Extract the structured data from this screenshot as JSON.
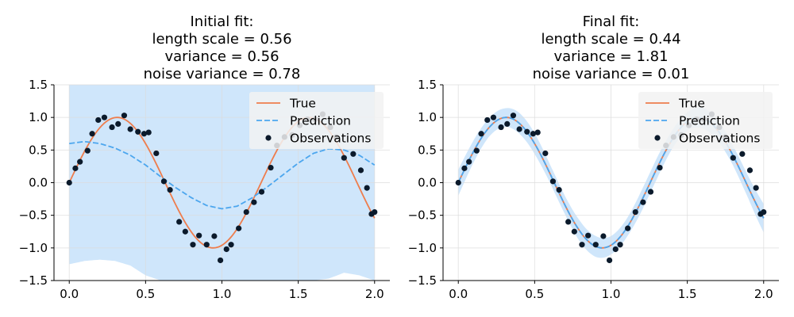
{
  "chart_data": [
    {
      "type": "line",
      "title": [
        "Initial fit:",
        "length scale = 0.56",
        "variance = 0.56",
        "noise variance = 0.78"
      ],
      "xlabel": "",
      "ylabel": "",
      "xlim": [
        -0.1,
        2.1
      ],
      "ylim": [
        -1.5,
        1.5
      ],
      "xticks": [
        "0.0",
        "0.5",
        "1.0",
        "1.5",
        "2.0"
      ],
      "yticks": [
        "−1.5",
        "−1.0",
        "−0.5",
        "0.0",
        "0.5",
        "1.0",
        "1.5"
      ],
      "grid": true,
      "legend_position": "top-right",
      "legend": [
        "True",
        "Prediction",
        "Observations"
      ],
      "true_function": "sin(5x)",
      "prediction": {
        "x": [
          0,
          0.1,
          0.2,
          0.3,
          0.4,
          0.5,
          0.6,
          0.7,
          0.8,
          0.9,
          1.0,
          1.1,
          1.2,
          1.3,
          1.4,
          1.5,
          1.6,
          1.7,
          1.8,
          1.9,
          2.0
        ],
        "mean": [
          0.6,
          0.63,
          0.6,
          0.53,
          0.42,
          0.27,
          0.09,
          -0.08,
          -0.23,
          -0.35,
          -0.4,
          -0.36,
          -0.23,
          -0.06,
          0.12,
          0.3,
          0.45,
          0.52,
          0.5,
          0.42,
          0.27
        ],
        "lower": [
          -1.25,
          -1.2,
          -1.18,
          -1.2,
          -1.27,
          -1.42,
          -1.5,
          -1.5,
          -1.5,
          -1.5,
          -1.5,
          -1.5,
          -1.5,
          -1.5,
          -1.5,
          -1.5,
          -1.5,
          -1.47,
          -1.38,
          -1.42,
          -1.5
        ],
        "upper": [
          1.5,
          1.5,
          1.5,
          1.5,
          1.5,
          1.5,
          1.5,
          1.5,
          1.5,
          1.5,
          1.5,
          1.5,
          1.5,
          1.5,
          1.5,
          1.5,
          1.5,
          1.5,
          1.5,
          1.5,
          1.5
        ]
      }
    },
    {
      "type": "line",
      "title": [
        "Final fit:",
        "length scale = 0.44",
        "variance = 1.81",
        "noise variance = 0.01"
      ],
      "xlabel": "",
      "ylabel": "",
      "xlim": [
        -0.1,
        2.1
      ],
      "ylim": [
        -1.5,
        1.5
      ],
      "xticks": [
        "0.0",
        "0.5",
        "1.0",
        "1.5",
        "2.0"
      ],
      "yticks": [
        "−1.5",
        "−1.0",
        "−0.5",
        "0.0",
        "0.5",
        "1.0",
        "1.5"
      ],
      "grid": true,
      "legend_position": "top-right",
      "legend": [
        "True",
        "Prediction",
        "Observations"
      ],
      "true_function": "sin(5x)",
      "prediction": {
        "mean_function": "sin(5x)",
        "band_halfwidth": [
          0.2,
          0.17,
          0.14,
          0.14,
          0.16,
          0.16,
          0.14,
          0.14,
          0.16,
          0.16,
          0.14,
          0.14,
          0.16,
          0.16,
          0.14,
          0.14,
          0.16,
          0.16,
          0.15,
          0.17,
          0.22
        ]
      }
    }
  ],
  "observations": {
    "x": [
      0.0,
      0.04,
      0.07,
      0.12,
      0.15,
      0.19,
      0.23,
      0.28,
      0.32,
      0.36,
      0.4,
      0.45,
      0.49,
      0.52,
      0.57,
      0.62,
      0.66,
      0.72,
      0.76,
      0.81,
      0.85,
      0.9,
      0.95,
      0.99,
      1.03,
      1.06,
      1.11,
      1.16,
      1.21,
      1.26,
      1.32,
      1.36,
      1.41,
      1.46,
      1.51,
      1.56,
      1.61,
      1.66,
      1.71,
      1.75,
      1.8,
      1.86,
      1.91,
      1.95,
      1.98,
      2.0
    ],
    "y": [
      0.0,
      0.22,
      0.32,
      0.49,
      0.75,
      0.96,
      1.0,
      0.85,
      0.9,
      1.03,
      0.82,
      0.78,
      0.75,
      0.77,
      0.45,
      0.02,
      -0.11,
      -0.6,
      -0.75,
      -0.95,
      -0.81,
      -0.95,
      -0.82,
      -1.19,
      -1.02,
      -0.95,
      -0.7,
      -0.45,
      -0.3,
      -0.14,
      0.23,
      0.57,
      0.7,
      0.73,
      0.88,
      0.97,
      0.97,
      1.05,
      0.85,
      0.7,
      0.38,
      0.44,
      0.19,
      -0.08,
      -0.48,
      -0.45
    ]
  },
  "colors": {
    "true": "#ee7d4d",
    "prediction": "#4ca6ee",
    "band": "#cfe6fb",
    "observations": "#0b1a2b",
    "grid": "#dcdcdc",
    "legend_bg": "#f2f2f2"
  }
}
